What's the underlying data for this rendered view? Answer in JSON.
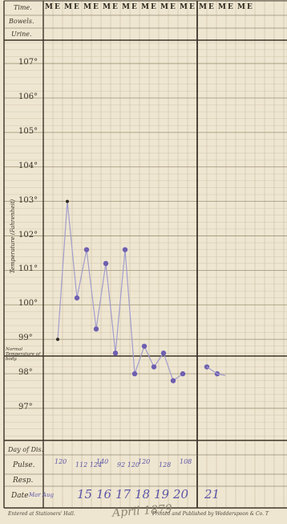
{
  "chart": {
    "header_row_labels": [
      "Time.",
      "Bowels.",
      "Urine."
    ],
    "time_marks": [
      "M",
      "E",
      "M",
      "E",
      "M",
      "E",
      "M",
      "E",
      "M",
      "E",
      "M",
      "E",
      "M",
      "E",
      "M",
      "E",
      "M",
      "E",
      "M",
      "E",
      "M",
      "E"
    ],
    "y_axis_title": "Temperature (Fahrenheit)",
    "degree_labels": [
      "107°",
      "106°",
      "105°",
      "104°",
      "103°",
      "102°",
      "101°",
      "100°",
      "99°",
      "98°",
      "97°"
    ],
    "normal_label": "Normal Temperature of body.",
    "bottom_row_labels": [
      "Day of Dis.",
      "Pulse.",
      "Resp.",
      "Date"
    ],
    "day_of_disease_note": "",
    "pulse_values": [
      "120",
      "112 124",
      "140",
      "92 120",
      "120",
      "128",
      "108"
    ],
    "date_values": [
      "15",
      "16",
      "17",
      "18",
      "19",
      "20",
      "21"
    ],
    "date_prefix": "Mar Aug"
  },
  "chart_data": {
    "type": "line",
    "ylabel": "Temperature (Fahrenheit)",
    "ylim": [
      96,
      108
    ],
    "normal_line": 98.4,
    "x": [
      "1M",
      "1E",
      "2M",
      "2E",
      "3M",
      "3E",
      "4M",
      "4E",
      "5M",
      "5E",
      "6M",
      "6E",
      "7M",
      "7E",
      "8M",
      "8E"
    ],
    "series": [
      {
        "values": [
          99.0,
          103.0,
          100.2,
          101.6,
          99.3,
          101.2,
          98.6,
          101.6,
          98.0,
          98.8,
          98.2,
          98.6,
          97.8,
          98.0,
          98.2,
          98.0
        ]
      }
    ],
    "colors": {
      "trace": "#9b96c8",
      "ink_dot": "#6e5fb0"
    }
  },
  "footer": {
    "left": "Entered at Stationers' Hall.",
    "right": "Printed and Published by Wedderspoon & Co. T",
    "signature": "April 1879"
  }
}
